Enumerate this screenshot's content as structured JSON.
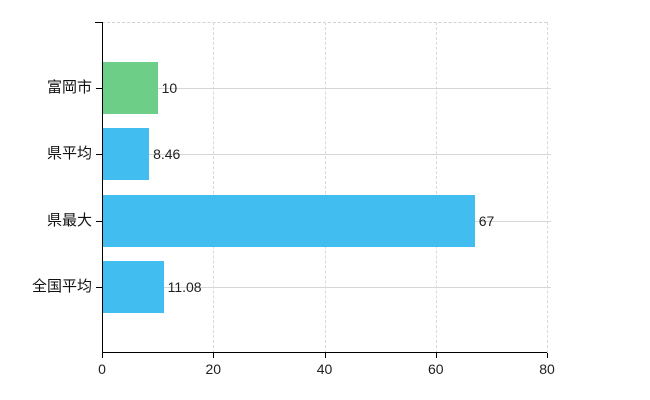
{
  "chart_data": {
    "type": "bar",
    "orientation": "horizontal",
    "title": "",
    "categories": [
      "富岡市",
      "県平均",
      "県最大",
      "全国平均"
    ],
    "values": [
      10,
      8.46,
      67,
      11.08
    ],
    "value_labels": [
      "10",
      "8.46",
      "67",
      "11.08"
    ],
    "bar_colors": [
      "#6dce88",
      "#41bdf0",
      "#41bdf0",
      "#41bdf0"
    ],
    "x_ticks": [
      0,
      20,
      40,
      60,
      80
    ],
    "x_tick_labels": [
      "0",
      "20",
      "40",
      "60",
      "80"
    ],
    "xlim": [
      0,
      80
    ],
    "xlabel": "",
    "ylabel": "",
    "grid": true,
    "legend": false,
    "gridline_style": {
      "vertical": "dashed",
      "horizontal": "solid",
      "top_border": "dashed"
    }
  },
  "colors": {
    "background": "#ffffff",
    "axis": "#000000",
    "grid": "#d9d9d9",
    "text": "#1f1f1f",
    "green_bar": "#6dce88",
    "blue_bar": "#41bdf0"
  }
}
